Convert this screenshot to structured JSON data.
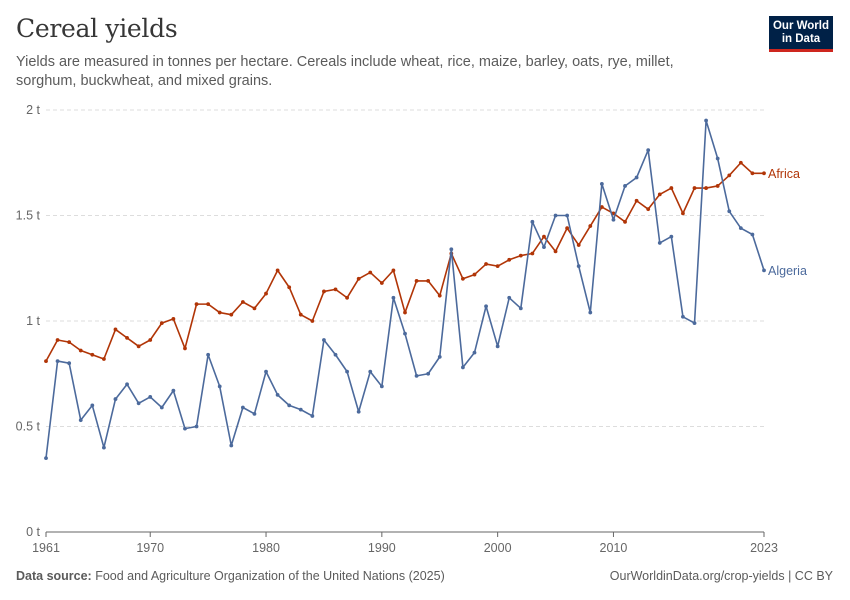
{
  "header": {
    "title": "Cereal yields",
    "subtitle": "Yields are measured in tonnes per hectare. Cereals include wheat, rice, maize, barley, oats, rye, millet, sorghum, buckwheat, and mixed grains."
  },
  "logo": {
    "line1": "Our World",
    "line2": "in Data"
  },
  "footer": {
    "source_label": "Data source:",
    "source_text": "Food and Agriculture Organization of the United Nations (2025)",
    "url_license": "OurWorldinData.org/crop-yields | CC BY"
  },
  "colors": {
    "africa": "#b13507",
    "algeria": "#4c6a9c",
    "grid": "#dddddd",
    "axis": "#666666",
    "text": "#666666"
  },
  "chart_data": {
    "type": "line",
    "title": "Cereal yields",
    "xlabel": "",
    "ylabel": "",
    "xlim": [
      1961,
      2023
    ],
    "ylim": [
      0,
      2
    ],
    "y_ticks": [
      {
        "value": 0,
        "label": "0 t"
      },
      {
        "value": 0.5,
        "label": "0.5 t"
      },
      {
        "value": 1,
        "label": "1 t"
      },
      {
        "value": 1.5,
        "label": "1.5 t"
      },
      {
        "value": 2,
        "label": "2 t"
      }
    ],
    "x_ticks": [
      {
        "value": 1961,
        "label": "1961"
      },
      {
        "value": 1970,
        "label": "1970"
      },
      {
        "value": 1980,
        "label": "1980"
      },
      {
        "value": 1990,
        "label": "1990"
      },
      {
        "value": 2000,
        "label": "2000"
      },
      {
        "value": 2010,
        "label": "2010"
      },
      {
        "value": 2023,
        "label": "2023"
      }
    ],
    "x": [
      1961,
      1962,
      1963,
      1964,
      1965,
      1966,
      1967,
      1968,
      1969,
      1970,
      1971,
      1972,
      1973,
      1974,
      1975,
      1976,
      1977,
      1978,
      1979,
      1980,
      1981,
      1982,
      1983,
      1984,
      1985,
      1986,
      1987,
      1988,
      1989,
      1990,
      1991,
      1992,
      1993,
      1994,
      1995,
      1996,
      1997,
      1998,
      1999,
      2000,
      2001,
      2002,
      2003,
      2004,
      2005,
      2006,
      2007,
      2008,
      2009,
      2010,
      2011,
      2012,
      2013,
      2014,
      2015,
      2016,
      2017,
      2018,
      2019,
      2020,
      2021,
      2022,
      2023
    ],
    "series": [
      {
        "name": "Africa",
        "color": "#b13507",
        "values": [
          0.81,
          0.91,
          0.9,
          0.86,
          0.84,
          0.82,
          0.96,
          0.92,
          0.88,
          0.91,
          0.99,
          1.01,
          0.87,
          1.08,
          1.08,
          1.04,
          1.03,
          1.09,
          1.06,
          1.13,
          1.24,
          1.16,
          1.03,
          1.0,
          1.14,
          1.15,
          1.11,
          1.2,
          1.23,
          1.18,
          1.24,
          1.04,
          1.19,
          1.19,
          1.12,
          1.32,
          1.2,
          1.22,
          1.27,
          1.26,
          1.29,
          1.31,
          1.32,
          1.4,
          1.33,
          1.44,
          1.36,
          1.45,
          1.54,
          1.51,
          1.47,
          1.57,
          1.53,
          1.6,
          1.63,
          1.51,
          1.63,
          1.63,
          1.64,
          1.69,
          1.75,
          1.7,
          1.7
        ]
      },
      {
        "name": "Algeria",
        "color": "#4c6a9c",
        "values": [
          0.35,
          0.81,
          0.8,
          0.53,
          0.6,
          0.4,
          0.63,
          0.7,
          0.61,
          0.64,
          0.59,
          0.67,
          0.49,
          0.5,
          0.84,
          0.69,
          0.41,
          0.59,
          0.56,
          0.76,
          0.65,
          0.6,
          0.58,
          0.55,
          0.91,
          0.84,
          0.76,
          0.57,
          0.76,
          0.69,
          1.11,
          0.94,
          0.74,
          0.75,
          0.83,
          1.34,
          0.78,
          0.85,
          1.07,
          0.88,
          1.11,
          1.06,
          1.47,
          1.35,
          1.5,
          1.5,
          1.26,
          1.04,
          1.65,
          1.48,
          1.64,
          1.68,
          1.81,
          1.37,
          1.4,
          1.02,
          0.99,
          1.95,
          1.77,
          1.52,
          1.44,
          1.41,
          1.24
        ]
      }
    ]
  }
}
